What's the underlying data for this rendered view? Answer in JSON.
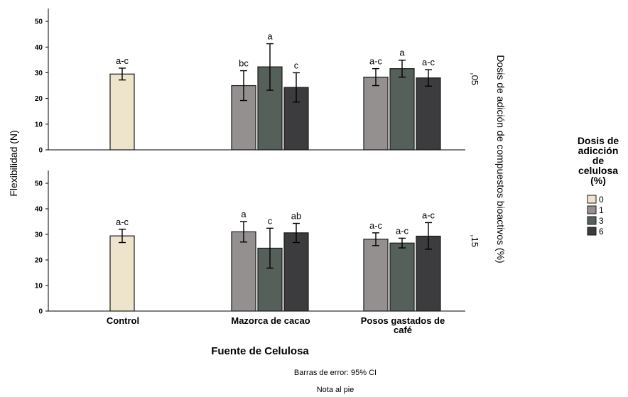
{
  "chart_data": {
    "type": "bar",
    "x_label": "Fuente de Celulosa",
    "y_label": "Flexibilidad (N)",
    "panel_axis_label": "Dosis de adición de compuestos bioactivos (%)",
    "categories": [
      "Control",
      "Mazorca de cacao",
      "Posos gastados de café"
    ],
    "category_display": [
      [
        "Control"
      ],
      [
        "Mazorca de cacao"
      ],
      [
        "Posos gastados de",
        "café"
      ]
    ],
    "ylim": [
      0,
      55
    ],
    "yticks": [
      0,
      10,
      20,
      30,
      40,
      50
    ],
    "legend": {
      "title_lines": [
        "Dosis de",
        "adicción",
        "de",
        "celulosa",
        "(%)"
      ],
      "placement": "right",
      "items": [
        {
          "label": "0",
          "color": "#EDE4CB"
        },
        {
          "label": "1",
          "color": "#949090"
        },
        {
          "label": "3",
          "color": "#56605A"
        },
        {
          "label": "6",
          "color": "#3C3C3E"
        }
      ]
    },
    "panels": [
      {
        "label": ",05",
        "bars": [
          {
            "category": "Control",
            "dose": "0",
            "value": 29.5,
            "ci": [
              27.2,
              31.8
            ],
            "sig": "a-c"
          },
          {
            "category": "Mazorca de cacao",
            "dose": "1",
            "value": 25.0,
            "ci": [
              19.2,
              30.8
            ],
            "sig": "bc"
          },
          {
            "category": "Mazorca de cacao",
            "dose": "3",
            "value": 32.3,
            "ci": [
              23.2,
              41.3
            ],
            "sig": "a"
          },
          {
            "category": "Mazorca de cacao",
            "dose": "6",
            "value": 24.3,
            "ci": [
              18.6,
              30.0
            ],
            "sig": "c"
          },
          {
            "category": "Posos gastados de café",
            "dose": "1",
            "value": 28.3,
            "ci": [
              25.0,
              31.6
            ],
            "sig": "a-c"
          },
          {
            "category": "Posos gastados de café",
            "dose": "3",
            "value": 31.6,
            "ci": [
              28.3,
              34.9
            ],
            "sig": "a"
          },
          {
            "category": "Posos gastados de café",
            "dose": "6",
            "value": 28.0,
            "ci": [
              24.8,
              31.2
            ],
            "sig": "a-c"
          }
        ]
      },
      {
        "label": ",15",
        "bars": [
          {
            "category": "Control",
            "dose": "0",
            "value": 29.4,
            "ci": [
              26.8,
              32.0
            ],
            "sig": "a-c"
          },
          {
            "category": "Mazorca de cacao",
            "dose": "1",
            "value": 31.0,
            "ci": [
              27.0,
              35.0
            ],
            "sig": "a"
          },
          {
            "category": "Mazorca de cacao",
            "dose": "3",
            "value": 24.6,
            "ci": [
              16.8,
              32.4
            ],
            "sig": "c"
          },
          {
            "category": "Mazorca de cacao",
            "dose": "6",
            "value": 30.6,
            "ci": [
              26.8,
              34.3
            ],
            "sig": "ab"
          },
          {
            "category": "Posos gastados de café",
            "dose": "1",
            "value": 28.1,
            "ci": [
              25.6,
              30.6
            ],
            "sig": "a-c"
          },
          {
            "category": "Posos gastados de café",
            "dose": "3",
            "value": 26.6,
            "ci": [
              24.7,
              28.5
            ],
            "sig": "a-c"
          },
          {
            "category": "Posos gastados de café",
            "dose": "6",
            "value": 29.3,
            "ci": [
              24.2,
              34.6
            ],
            "sig": "a-c"
          }
        ]
      }
    ],
    "error_bar_note": "Barras de error: 95% CI",
    "footnote": "Nota al pie"
  }
}
